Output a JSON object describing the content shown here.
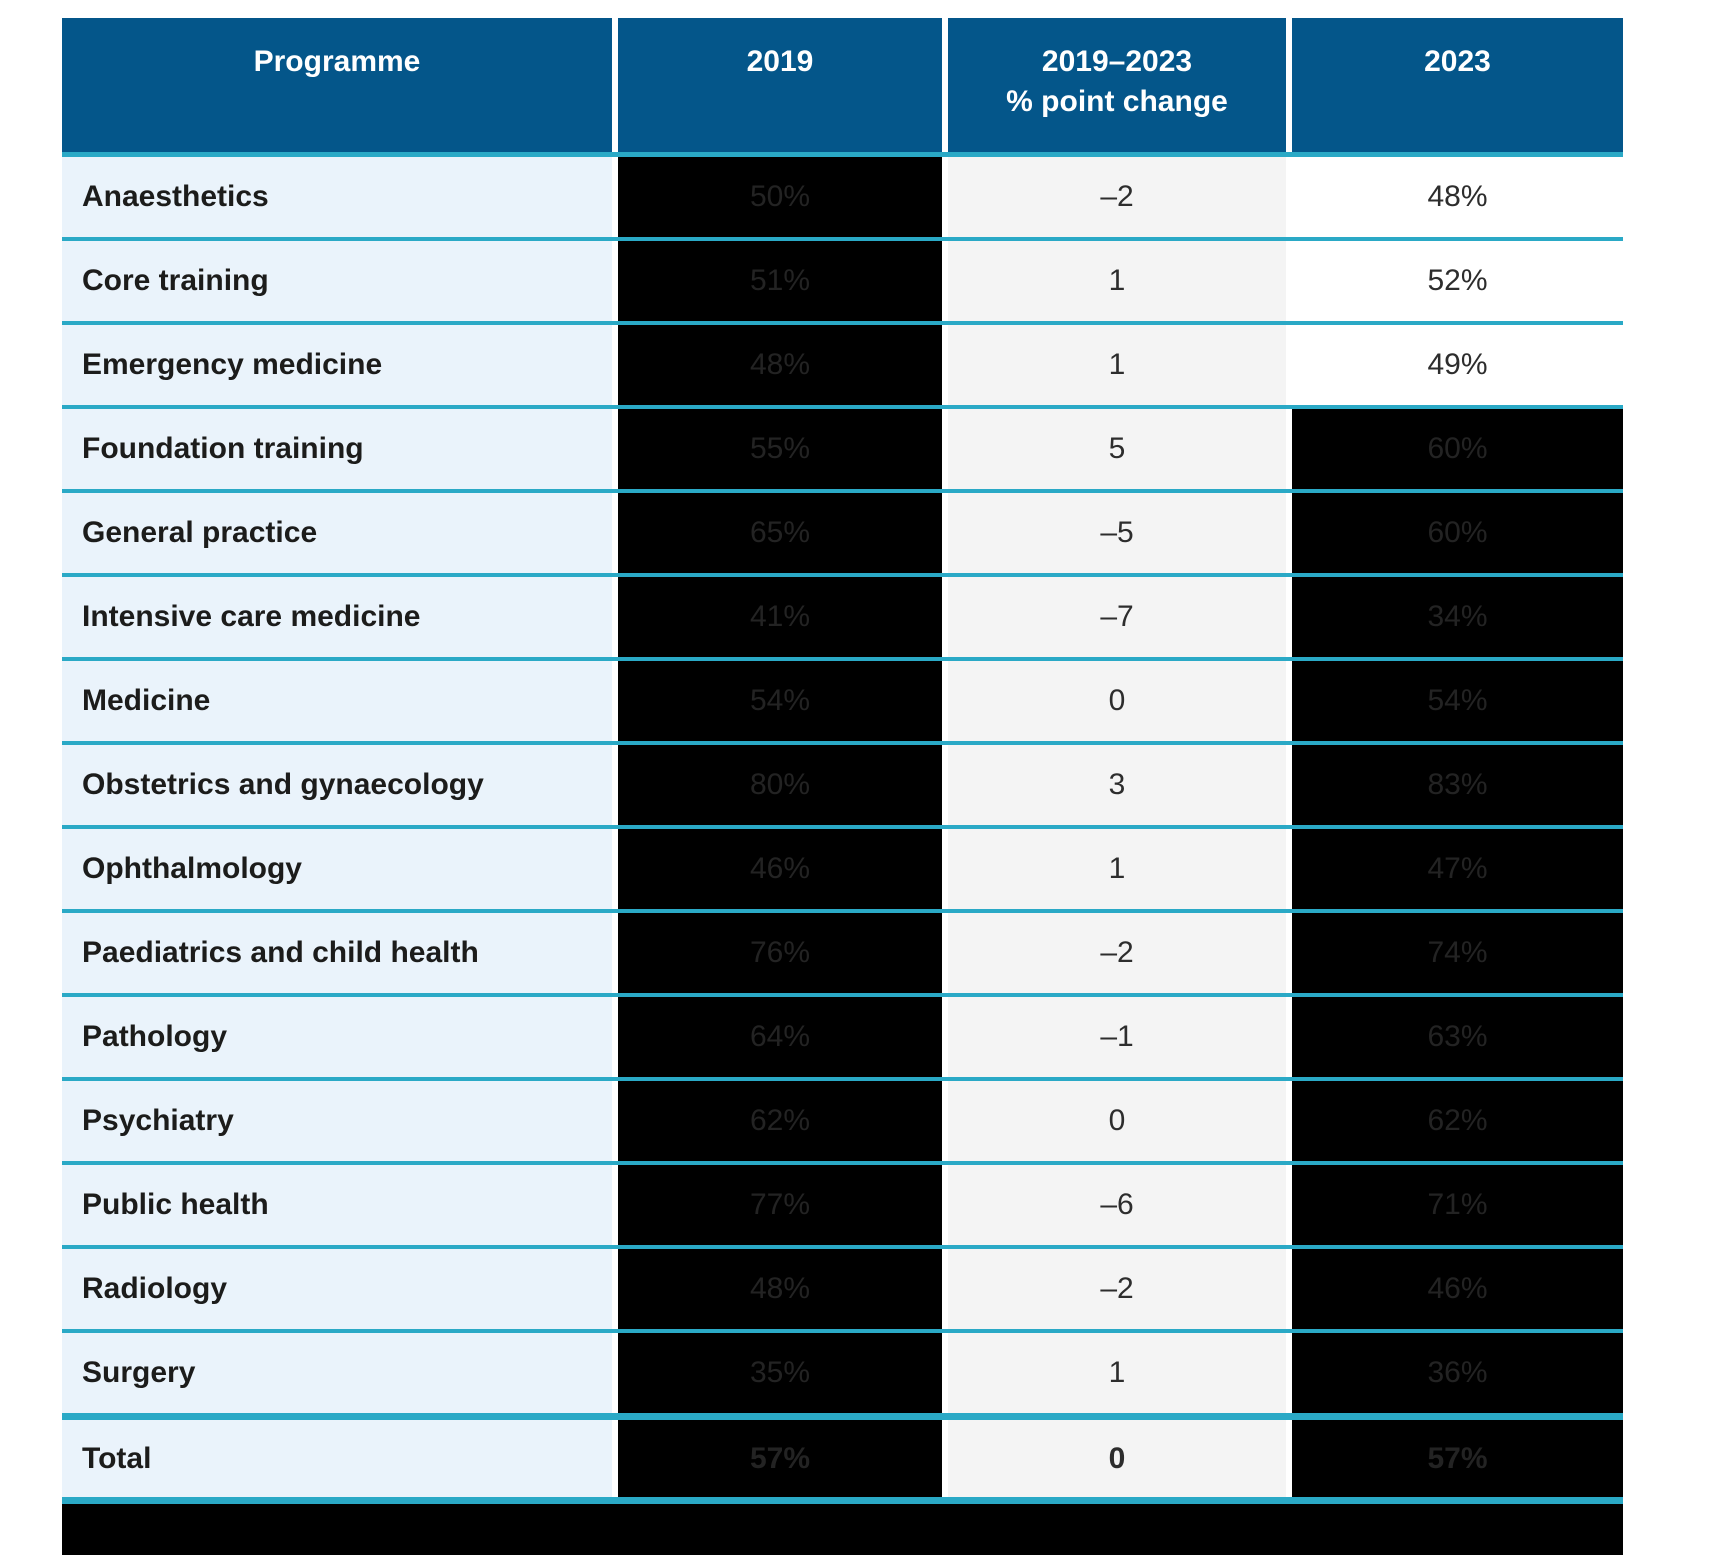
{
  "colors": {
    "header_blue": "#04568a",
    "row_separator_teal": "#2aa9c6",
    "programme_col_bg": "#eaf3fb",
    "change_col_bg": "#f4f4f4",
    "masked_cell_bg": "#000000",
    "masked_cell_text": "#232323",
    "footer_bar": "#000000"
  },
  "header": {
    "programme": "Programme",
    "y2019": "2019",
    "change_line1": "2019–2023",
    "change_line2": "% point change",
    "y2023": "2023"
  },
  "table": {
    "rows": [
      {
        "programme": "Anaesthetics",
        "y2019": "50%",
        "change": "–2",
        "y2023": "48%",
        "masked_2019": true,
        "masked_2023": false,
        "is_total": false
      },
      {
        "programme": "Core training",
        "y2019": "51%",
        "change": "1",
        "y2023": "52%",
        "masked_2019": true,
        "masked_2023": false,
        "is_total": false
      },
      {
        "programme": "Emergency medicine",
        "y2019": "48%",
        "change": "1",
        "y2023": "49%",
        "masked_2019": true,
        "masked_2023": false,
        "is_total": false
      },
      {
        "programme": "Foundation training",
        "y2019": "55%",
        "change": "5",
        "y2023": "60%",
        "masked_2019": true,
        "masked_2023": true,
        "is_total": false
      },
      {
        "programme": "General practice",
        "y2019": "65%",
        "change": "–5",
        "y2023": "60%",
        "masked_2019": true,
        "masked_2023": true,
        "is_total": false
      },
      {
        "programme": "Intensive care medicine",
        "y2019": "41%",
        "change": "–7",
        "y2023": "34%",
        "masked_2019": true,
        "masked_2023": true,
        "is_total": false
      },
      {
        "programme": "Medicine",
        "y2019": "54%",
        "change": "0",
        "y2023": "54%",
        "masked_2019": true,
        "masked_2023": true,
        "is_total": false
      },
      {
        "programme": "Obstetrics and gynaecology",
        "y2019": "80%",
        "change": "3",
        "y2023": "83%",
        "masked_2019": true,
        "masked_2023": true,
        "is_total": false
      },
      {
        "programme": "Ophthalmology",
        "y2019": "46%",
        "change": "1",
        "y2023": "47%",
        "masked_2019": true,
        "masked_2023": true,
        "is_total": false
      },
      {
        "programme": "Paediatrics and child health",
        "y2019": "76%",
        "change": "–2",
        "y2023": "74%",
        "masked_2019": true,
        "masked_2023": true,
        "is_total": false
      },
      {
        "programme": "Pathology",
        "y2019": "64%",
        "change": "–1",
        "y2023": "63%",
        "masked_2019": true,
        "masked_2023": true,
        "is_total": false
      },
      {
        "programme": "Psychiatry",
        "y2019": "62%",
        "change": "0",
        "y2023": "62%",
        "masked_2019": true,
        "masked_2023": true,
        "is_total": false
      },
      {
        "programme": "Public health",
        "y2019": "77%",
        "change": "–6",
        "y2023": "71%",
        "masked_2019": true,
        "masked_2023": true,
        "is_total": false
      },
      {
        "programme": "Radiology",
        "y2019": "48%",
        "change": "–2",
        "y2023": "46%",
        "masked_2019": true,
        "masked_2023": true,
        "is_total": false
      },
      {
        "programme": "Surgery",
        "y2019": "35%",
        "change": "1",
        "y2023": "36%",
        "masked_2019": true,
        "masked_2023": true,
        "is_total": false
      },
      {
        "programme": "Total",
        "y2019": "57%",
        "change": "0",
        "y2023": "57%",
        "masked_2019": true,
        "masked_2023": true,
        "is_total": true
      }
    ]
  },
  "chart_data": {
    "type": "table",
    "title": "",
    "columns": [
      "Programme",
      "2019",
      "2019–2023 % point change",
      "2023"
    ],
    "categories": [
      "Anaesthetics",
      "Core training",
      "Emergency medicine",
      "Foundation training",
      "General practice",
      "Intensive care medicine",
      "Medicine",
      "Obstetrics and gynaecology",
      "Ophthalmology",
      "Paediatrics and child health",
      "Pathology",
      "Psychiatry",
      "Public health",
      "Radiology",
      "Surgery",
      "Total"
    ],
    "series": [
      {
        "name": "2019 (%)",
        "values": [
          50,
          51,
          48,
          55,
          65,
          41,
          54,
          80,
          46,
          76,
          64,
          62,
          77,
          48,
          35,
          57
        ]
      },
      {
        "name": "2019–2023 % point change",
        "values": [
          -2,
          1,
          1,
          5,
          -5,
          -7,
          0,
          3,
          1,
          -2,
          -1,
          0,
          -6,
          -2,
          1,
          0
        ]
      },
      {
        "name": "2023 (%)",
        "values": [
          48,
          52,
          49,
          60,
          60,
          34,
          54,
          83,
          47,
          74,
          63,
          62,
          71,
          46,
          36,
          57
        ]
      }
    ],
    "notes": "2019 column values and most 2023 column values are shown on blacked-out (redacted-looking) cell backgrounds; 2019–2023 % point change column on light grey; Total row bold with thicker teal rules above and below; solid black bar below the table."
  }
}
